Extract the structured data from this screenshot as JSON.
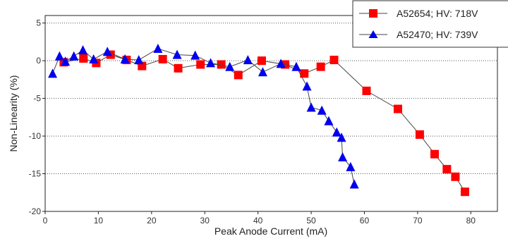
{
  "chart_data": {
    "type": "line",
    "title": "",
    "xlabel": "Peak Anode Current (mA)",
    "ylabel": "Non-Linearity (%)",
    "xlim": [
      0,
      85
    ],
    "ylim": [
      -20,
      6
    ],
    "x_ticks": [
      "0",
      "10",
      "20",
      "30",
      "40",
      "50",
      "60",
      "70",
      "80"
    ],
    "y_ticks": [
      "5",
      "0",
      "-5",
      "-10",
      "-15",
      "-20"
    ],
    "grid": "horizontal dotted",
    "legend_position": "top-right",
    "series": [
      {
        "name": "A52654; HV: 718V",
        "marker": "square",
        "color": "#ff0000",
        "line_color": "#444444",
        "points": [
          [
            3.5,
            -0.2
          ],
          [
            7.2,
            0.3
          ],
          [
            9.6,
            -0.3
          ],
          [
            12.3,
            0.8
          ],
          [
            15.3,
            0.1
          ],
          [
            18.2,
            -0.7
          ],
          [
            22.1,
            0.2
          ],
          [
            25.0,
            -1.0
          ],
          [
            29.2,
            -0.5
          ],
          [
            33.1,
            -0.5
          ],
          [
            36.3,
            -1.9
          ],
          [
            40.7,
            0.0
          ],
          [
            45.1,
            -0.5
          ],
          [
            48.7,
            -1.7
          ],
          [
            51.8,
            -0.8
          ],
          [
            54.3,
            0.1
          ],
          [
            60.4,
            -4.0
          ],
          [
            66.3,
            -6.4
          ],
          [
            70.4,
            -9.8
          ],
          [
            73.2,
            -12.4
          ],
          [
            75.5,
            -14.4
          ],
          [
            77.1,
            -15.4
          ],
          [
            78.9,
            -17.4
          ]
        ]
      },
      {
        "name": "A52470; HV: 739V",
        "marker": "triangle",
        "color": "#0000ee",
        "line_color": "#444444",
        "points": [
          [
            1.4,
            -1.7
          ],
          [
            2.7,
            0.6
          ],
          [
            3.8,
            -0.1
          ],
          [
            5.4,
            0.6
          ],
          [
            7.1,
            1.4
          ],
          [
            9.1,
            0.2
          ],
          [
            11.7,
            1.2
          ],
          [
            15.0,
            0.2
          ],
          [
            17.6,
            0.1
          ],
          [
            21.2,
            1.6
          ],
          [
            24.8,
            0.8
          ],
          [
            28.2,
            0.7
          ],
          [
            31.1,
            -0.3
          ],
          [
            34.7,
            -0.8
          ],
          [
            38.1,
            0.1
          ],
          [
            40.9,
            -1.5
          ],
          [
            44.3,
            -0.4
          ],
          [
            47.2,
            -0.8
          ],
          [
            49.2,
            -3.4
          ],
          [
            50.0,
            -6.2
          ],
          [
            52.0,
            -6.6
          ],
          [
            53.3,
            -8.0
          ],
          [
            54.8,
            -9.5
          ],
          [
            55.7,
            -10.2
          ],
          [
            55.9,
            -12.8
          ],
          [
            57.4,
            -14.1
          ],
          [
            58.1,
            -16.4
          ]
        ]
      }
    ]
  }
}
